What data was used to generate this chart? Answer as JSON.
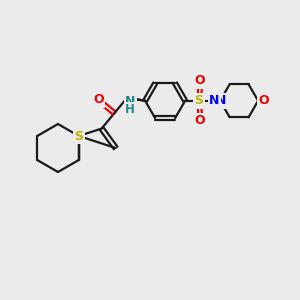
{
  "bg_color": "#ebebeb",
  "bond_color": "#1a1a1a",
  "S_color": "#b8b800",
  "N_color": "#0000ee",
  "O_color": "#ee0000",
  "NH_color": "#228888",
  "figsize": [
    3.0,
    3.0
  ],
  "dpi": 100
}
